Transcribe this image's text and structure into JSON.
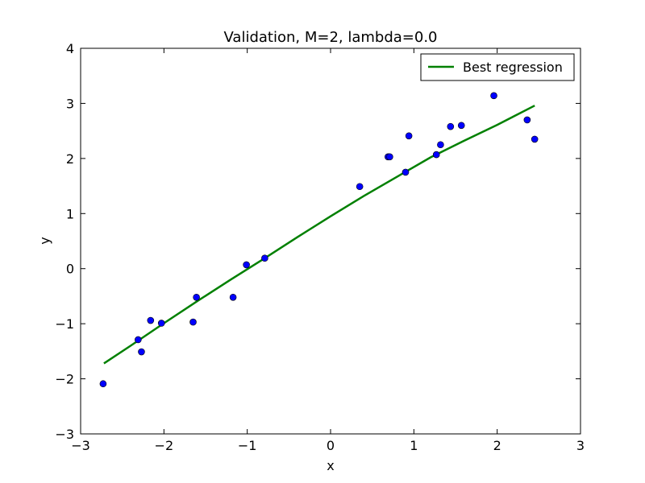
{
  "chart_data": {
    "type": "scatter",
    "title": "Validation, M=2, lambda=0.0",
    "xlabel": "x",
    "ylabel": "y",
    "xlim": [
      -3,
      3
    ],
    "ylim": [
      -3,
      4
    ],
    "xticks": [
      -3,
      -2,
      -1,
      0,
      1,
      2,
      3
    ],
    "xtick_labels": [
      "−3",
      "−2",
      "−1",
      "0",
      "1",
      "2",
      "3"
    ],
    "yticks": [
      -3,
      -2,
      -1,
      0,
      1,
      2,
      3,
      4
    ],
    "ytick_labels": [
      "−3",
      "−2",
      "−1",
      "0",
      "1",
      "2",
      "3",
      "4"
    ],
    "grid": false,
    "legend_position": "top-right",
    "points": {
      "color": "#0000ff",
      "x": [
        -2.73,
        -2.31,
        -2.27,
        -2.16,
        -2.03,
        -1.65,
        -1.61,
        -1.17,
        -1.01,
        -0.79,
        0.35,
        0.69,
        0.71,
        0.9,
        0.94,
        1.27,
        1.32,
        1.44,
        1.57,
        1.96,
        2.36,
        2.45
      ],
      "y": [
        -2.09,
        -1.29,
        -1.51,
        -0.94,
        -0.99,
        -0.97,
        -0.52,
        -0.52,
        0.07,
        0.19,
        1.49,
        2.03,
        2.03,
        1.75,
        2.41,
        2.07,
        2.25,
        2.58,
        2.6,
        3.14,
        2.7,
        2.35
      ]
    },
    "series": [
      {
        "name": "Best regression",
        "type": "line",
        "color": "#008000",
        "x": [
          -2.72,
          -2.4,
          -2.0,
          -1.6,
          -1.2,
          -0.8,
          -0.4,
          0.0,
          0.4,
          0.8,
          1.2,
          1.6,
          2.0,
          2.45
        ],
        "y": [
          -1.72,
          -1.4,
          -0.99,
          -0.59,
          -0.2,
          0.18,
          0.57,
          0.95,
          1.32,
          1.67,
          2.02,
          2.32,
          2.61,
          2.96
        ]
      }
    ]
  }
}
